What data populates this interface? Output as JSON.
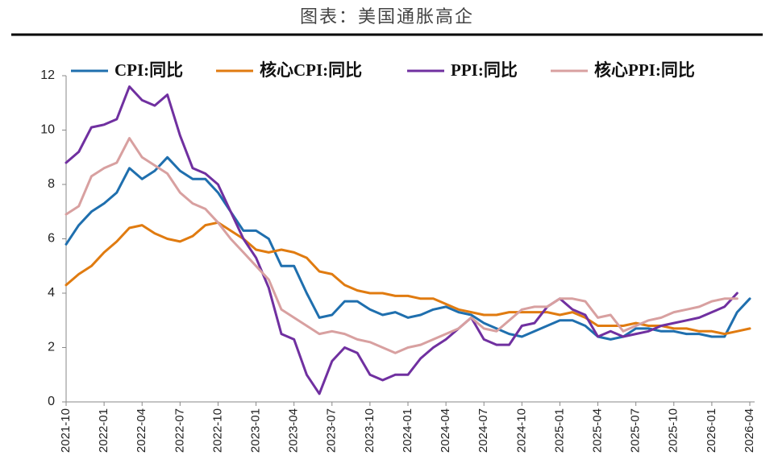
{
  "chart_data": {
    "type": "line",
    "title": "图表：美国通胀高企",
    "categories": [
      "2021-10",
      null,
      null,
      "2022-01",
      null,
      null,
      "2022-04",
      null,
      null,
      "2022-07",
      null,
      null,
      "2022-10",
      null,
      null,
      "2023-01",
      null,
      null,
      "2023-04",
      null,
      null,
      "2023-07",
      null,
      null,
      "2023-10",
      null,
      null,
      "2024-01",
      null,
      null,
      "2024-04",
      null,
      null,
      "2024-07",
      null,
      null,
      "2024-10",
      null,
      null,
      "2025-01",
      null,
      null,
      "2025-04",
      null,
      null,
      "2025-07",
      null,
      null,
      "2025-10",
      null,
      null,
      "2026-01",
      null,
      null,
      "2026-04"
    ],
    "series": [
      {
        "name": "CPI:同比",
        "color": "#1f6fae",
        "values": [
          5.8,
          6.5,
          7.0,
          7.3,
          7.7,
          8.6,
          8.2,
          8.5,
          9.0,
          8.5,
          8.2,
          8.2,
          7.7,
          7.0,
          6.3,
          6.3,
          6.0,
          5.0,
          5.0,
          4.0,
          3.1,
          3.2,
          3.7,
          3.7,
          3.4,
          3.2,
          3.3,
          3.1,
          3.2,
          3.4,
          3.5,
          3.3,
          3.2,
          2.9,
          2.7,
          2.5,
          2.4,
          2.6,
          2.8,
          3.0,
          3.0,
          2.8,
          2.4,
          2.3,
          2.4,
          2.7,
          2.7,
          2.6,
          2.6,
          2.5,
          2.5,
          2.4,
          2.4,
          3.3,
          3.8
        ]
      },
      {
        "name": "核心CPI:同比",
        "color": "#e07b10",
        "values": [
          4.3,
          4.7,
          5.0,
          5.5,
          5.9,
          6.4,
          6.5,
          6.2,
          6.0,
          5.9,
          6.1,
          6.5,
          6.6,
          6.3,
          6.0,
          5.6,
          5.5,
          5.6,
          5.5,
          5.3,
          4.8,
          4.7,
          4.3,
          4.1,
          4.0,
          4.0,
          3.9,
          3.9,
          3.8,
          3.8,
          3.6,
          3.4,
          3.3,
          3.2,
          3.2,
          3.3,
          3.3,
          3.3,
          3.3,
          3.2,
          3.3,
          3.1,
          2.8,
          2.8,
          2.8,
          2.9,
          2.8,
          2.8,
          2.7,
          2.7,
          2.6,
          2.6,
          2.5,
          2.6,
          2.7
        ]
      },
      {
        "name": "PPI:同比",
        "color": "#7030a0",
        "values": [
          8.8,
          9.2,
          10.1,
          10.2,
          10.4,
          11.6,
          11.1,
          10.9,
          11.3,
          9.8,
          8.6,
          8.4,
          8.0,
          7.0,
          6.0,
          5.3,
          4.2,
          2.5,
          2.3,
          1.0,
          0.3,
          1.5,
          2.0,
          1.8,
          1.0,
          0.8,
          1.0,
          1.0,
          1.6,
          2.0,
          2.3,
          2.7,
          3.1,
          2.3,
          2.1,
          2.1,
          2.8,
          2.9,
          3.5,
          3.8,
          3.4,
          3.2,
          2.4,
          2.6,
          2.4,
          2.5,
          2.6,
          2.8,
          2.9,
          3.0,
          3.1,
          3.3,
          3.5,
          4.0,
          null
        ]
      },
      {
        "name": "核心PPI:同比",
        "color": "#d8a0a0",
        "values": [
          6.9,
          7.2,
          8.3,
          8.6,
          8.8,
          9.7,
          9.0,
          8.7,
          8.4,
          7.7,
          7.3,
          7.1,
          6.6,
          6.0,
          5.5,
          5.0,
          4.5,
          3.4,
          3.1,
          2.8,
          2.5,
          2.6,
          2.5,
          2.3,
          2.2,
          2.0,
          1.8,
          2.0,
          2.1,
          2.3,
          2.5,
          2.7,
          3.1,
          2.7,
          2.6,
          3.0,
          3.4,
          3.5,
          3.5,
          3.8,
          3.8,
          3.7,
          3.1,
          3.2,
          2.6,
          2.8,
          3.0,
          3.1,
          3.3,
          3.4,
          3.5,
          3.7,
          3.8,
          3.8,
          null
        ]
      }
    ],
    "ylim": [
      0,
      12
    ],
    "yticks": [
      0,
      2,
      4,
      6,
      8,
      10,
      12
    ],
    "legend": "top"
  }
}
